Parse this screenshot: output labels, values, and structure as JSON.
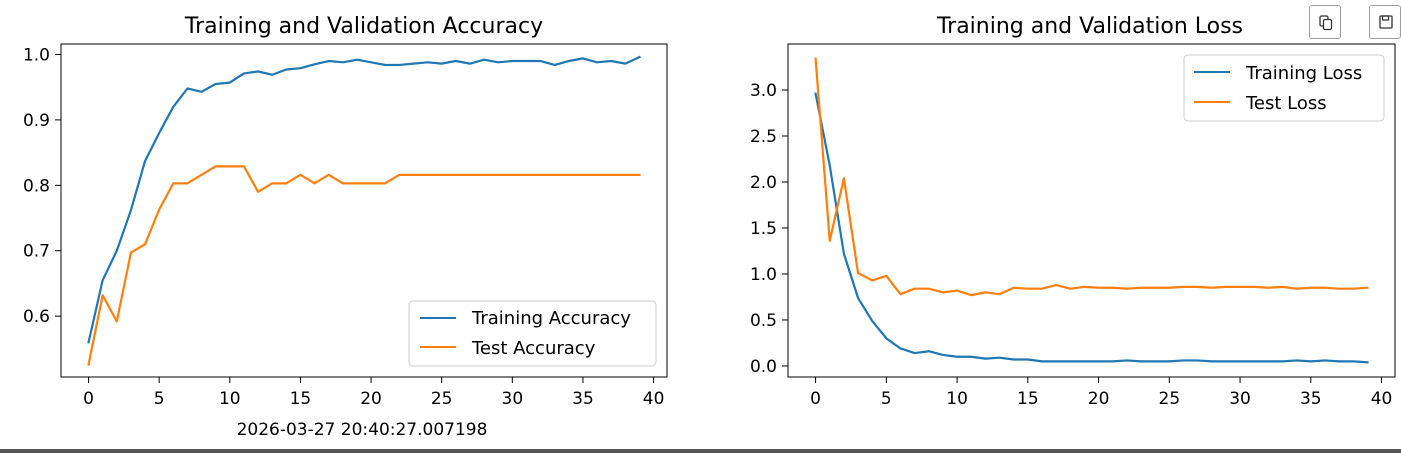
{
  "timestamp": "2026-03-27 20:40:27.007198",
  "toolbar": {
    "copy_icon": "copy-icon",
    "save_icon": "save-icon"
  },
  "colors": {
    "training": "#1f77b4",
    "test": "#ff7f0e"
  },
  "chart_data": [
    {
      "type": "line",
      "title": "Training and Validation Accuracy",
      "xlabel": "",
      "ylabel": "",
      "xlim": [
        -1.95,
        40.95
      ],
      "ylim": [
        0.507,
        1.016
      ],
      "xticks": [
        0,
        5,
        10,
        15,
        20,
        25,
        30,
        35,
        40
      ],
      "yticks": [
        0.6,
        0.7,
        0.8,
        0.9,
        1.0
      ],
      "ytick_labels": [
        "0.6",
        "0.7",
        "0.8",
        "0.9",
        "1.0"
      ],
      "grid": false,
      "legend": "lower-right",
      "series": [
        {
          "name": "Training Accuracy",
          "x": [
            0,
            1,
            2,
            3,
            4,
            5,
            6,
            7,
            8,
            9,
            10,
            11,
            12,
            13,
            14,
            15,
            16,
            17,
            18,
            19,
            20,
            21,
            22,
            23,
            24,
            25,
            26,
            27,
            28,
            29,
            30,
            31,
            32,
            33,
            34,
            35,
            36,
            37,
            38,
            39
          ],
          "values": [
            0.56,
            0.655,
            0.7,
            0.762,
            0.837,
            0.88,
            0.92,
            0.948,
            0.943,
            0.955,
            0.957,
            0.971,
            0.974,
            0.969,
            0.977,
            0.979,
            0.985,
            0.99,
            0.988,
            0.992,
            0.988,
            0.984,
            0.984,
            0.986,
            0.988,
            0.986,
            0.99,
            0.986,
            0.992,
            0.988,
            0.99,
            0.99,
            0.99,
            0.984,
            0.99,
            0.994,
            0.988,
            0.99,
            0.986,
            0.996
          ]
        },
        {
          "name": "Test Accuracy",
          "x": [
            0,
            1,
            2,
            3,
            4,
            5,
            6,
            7,
            8,
            9,
            10,
            11,
            12,
            13,
            14,
            15,
            16,
            17,
            18,
            19,
            20,
            21,
            22,
            23,
            24,
            25,
            26,
            27,
            28,
            29,
            30,
            31,
            32,
            33,
            34,
            35,
            36,
            37,
            38,
            39
          ],
          "values": [
            0.526,
            0.632,
            0.592,
            0.697,
            0.71,
            0.763,
            0.803,
            0.803,
            0.816,
            0.829,
            0.829,
            0.829,
            0.79,
            0.803,
            0.803,
            0.816,
            0.803,
            0.816,
            0.803,
            0.803,
            0.803,
            0.803,
            0.816,
            0.816,
            0.816,
            0.816,
            0.816,
            0.816,
            0.816,
            0.816,
            0.816,
            0.816,
            0.816,
            0.816,
            0.816,
            0.816,
            0.816,
            0.816,
            0.816,
            0.816
          ]
        }
      ]
    },
    {
      "type": "line",
      "title": "Training and Validation Loss",
      "xlabel": "",
      "ylabel": "",
      "xlim": [
        -1.95,
        40.95
      ],
      "ylim": [
        -0.12,
        3.5
      ],
      "xticks": [
        0,
        5,
        10,
        15,
        20,
        25,
        30,
        35,
        40
      ],
      "yticks": [
        0.0,
        0.5,
        1.0,
        1.5,
        2.0,
        2.5,
        3.0
      ],
      "ytick_labels": [
        "0.0",
        "0.5",
        "1.0",
        "1.5",
        "2.0",
        "2.5",
        "3.0"
      ],
      "grid": false,
      "legend": "top-right",
      "series": [
        {
          "name": "Training Loss",
          "x": [
            0,
            1,
            2,
            3,
            4,
            5,
            6,
            7,
            8,
            9,
            10,
            11,
            12,
            13,
            14,
            15,
            16,
            17,
            18,
            19,
            20,
            21,
            22,
            23,
            24,
            25,
            26,
            27,
            28,
            29,
            30,
            31,
            32,
            33,
            34,
            35,
            36,
            37,
            38,
            39
          ],
          "values": [
            2.96,
            2.18,
            1.22,
            0.74,
            0.49,
            0.3,
            0.19,
            0.14,
            0.16,
            0.12,
            0.1,
            0.1,
            0.08,
            0.09,
            0.07,
            0.07,
            0.05,
            0.05,
            0.05,
            0.05,
            0.05,
            0.05,
            0.06,
            0.05,
            0.05,
            0.05,
            0.06,
            0.06,
            0.05,
            0.05,
            0.05,
            0.05,
            0.05,
            0.05,
            0.06,
            0.05,
            0.06,
            0.05,
            0.05,
            0.04
          ]
        },
        {
          "name": "Test Loss",
          "x": [
            0,
            1,
            2,
            3,
            4,
            5,
            6,
            7,
            8,
            9,
            10,
            11,
            12,
            13,
            14,
            15,
            16,
            17,
            18,
            19,
            20,
            21,
            22,
            23,
            24,
            25,
            26,
            27,
            28,
            29,
            30,
            31,
            32,
            33,
            34,
            35,
            36,
            37,
            38,
            39
          ],
          "values": [
            3.34,
            1.36,
            2.04,
            1.01,
            0.93,
            0.98,
            0.78,
            0.84,
            0.84,
            0.8,
            0.82,
            0.77,
            0.8,
            0.78,
            0.85,
            0.84,
            0.84,
            0.88,
            0.84,
            0.86,
            0.85,
            0.85,
            0.84,
            0.85,
            0.85,
            0.85,
            0.86,
            0.86,
            0.85,
            0.86,
            0.86,
            0.86,
            0.85,
            0.86,
            0.84,
            0.85,
            0.85,
            0.84,
            0.84,
            0.85
          ]
        }
      ]
    }
  ]
}
